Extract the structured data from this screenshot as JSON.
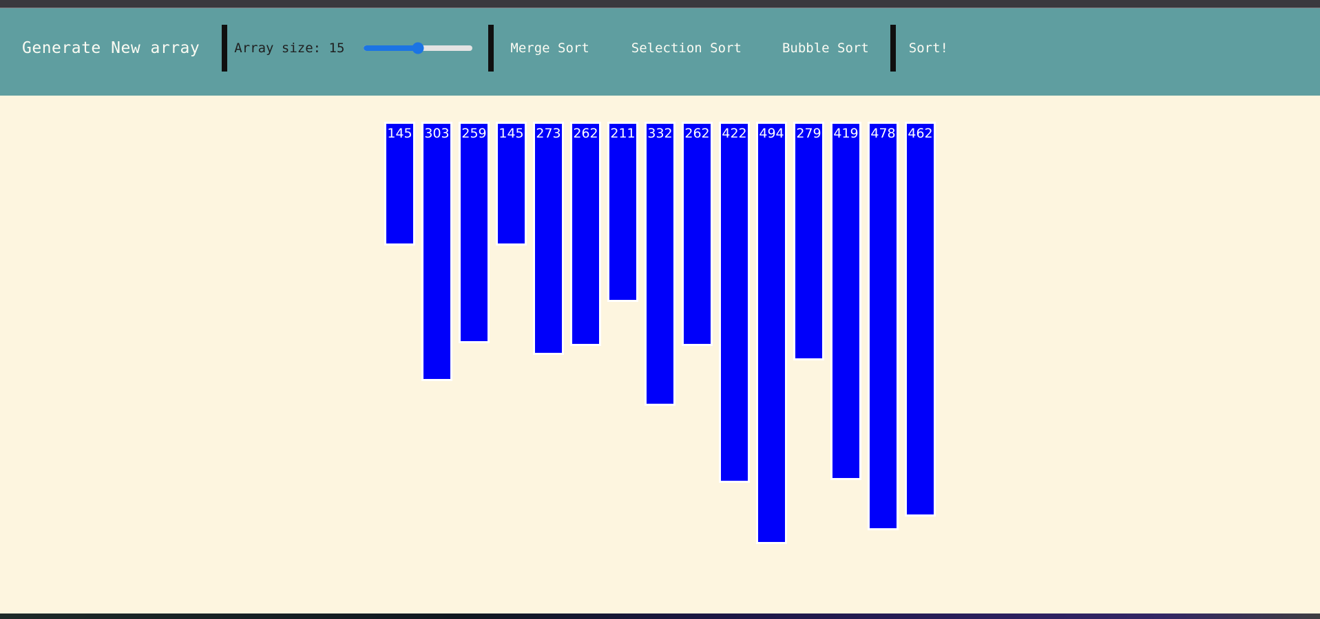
{
  "header": {
    "generate_label": "Generate New array",
    "array_size_label": "Array size: 15",
    "slider": {
      "value": 15,
      "percent_filled": 50
    },
    "nav": [
      {
        "label": "Merge Sort"
      },
      {
        "label": "Selection Sort"
      },
      {
        "label": "Bubble Sort"
      }
    ],
    "sort_label": "Sort!"
  },
  "bars": {
    "values": [
      145,
      303,
      259,
      145,
      273,
      262,
      211,
      332,
      262,
      422,
      494,
      279,
      419,
      478,
      462
    ],
    "count": 15
  },
  "colors": {
    "navbar_bg": "#5f9ea0",
    "page_bg": "#fdf5df",
    "bar_fill": "#0000fa",
    "bar_border": "#ffffff",
    "bar_text": "#ffffff",
    "slider_fill": "#1b74e4",
    "slider_track": "#e3e3e3",
    "top_strip": "#3a393e",
    "divider": "#101010",
    "navbar_text": "#fbfbf3",
    "size_label_text": "#1f1f1f"
  }
}
